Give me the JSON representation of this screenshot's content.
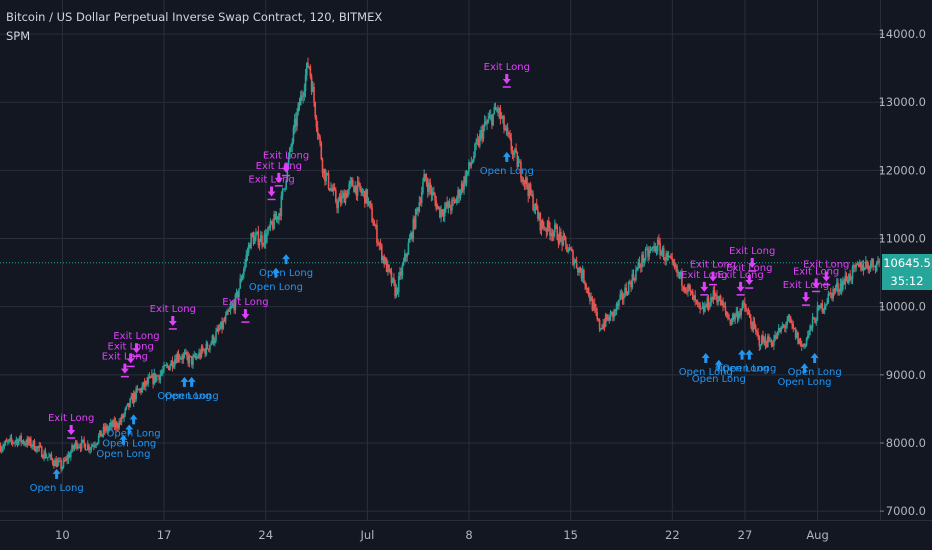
{
  "header": {
    "title": "Bitcoin / US Dollar Perpetual Inverse Swap Contract, 120, BITMEX",
    "study": "SPM"
  },
  "price_tag": {
    "value": "10645.5",
    "color": "#26a69a"
  },
  "countdown_tag": {
    "value": "35:12",
    "color": "#26a69a"
  },
  "colors": {
    "background": "#131722",
    "grid": "#2a2e39",
    "up": "#26a69a",
    "down": "#ef5350",
    "signal_open": "#2196f3",
    "signal_exit": "#e040fb",
    "text": "#b2b5be"
  },
  "chart_data": {
    "type": "candlestick",
    "title": "Bitcoin / US Dollar Perpetual Inverse Swap Contract, 120, BITMEX",
    "y_ticks": [
      7000,
      8000,
      9000,
      10000,
      11000,
      12000,
      13000,
      14000
    ],
    "y_tick_labels": [
      "7000.0",
      "8000.0",
      "9000.0",
      "10000.0",
      "11000.0",
      "12000.0",
      "13000.0",
      "14000.0"
    ],
    "ylim": [
      6870,
      14500
    ],
    "x_ticks": [
      "10",
      "17",
      "24",
      "Jul",
      "8",
      "15",
      "22",
      "27",
      "Aug"
    ],
    "x_tick_days": [
      10,
      17,
      24,
      31,
      38,
      45,
      52,
      57,
      62
    ],
    "xlim": [
      5.7,
      66.3
    ],
    "price_path": [
      [
        5.7,
        7950
      ],
      [
        7,
        8050
      ],
      [
        8,
        7980
      ],
      [
        9,
        7800
      ],
      [
        10,
        7650
      ],
      [
        11,
        8000
      ],
      [
        12,
        7950
      ],
      [
        13,
        8200
      ],
      [
        14,
        8300
      ],
      [
        15,
        8700
      ],
      [
        16,
        8900
      ],
      [
        17,
        9050
      ],
      [
        18,
        9300
      ],
      [
        19,
        9200
      ],
      [
        20,
        9400
      ],
      [
        21,
        9700
      ],
      [
        22,
        10100
      ],
      [
        23,
        11000
      ],
      [
        24,
        11000
      ],
      [
        25,
        11400
      ],
      [
        26,
        12600
      ],
      [
        27,
        13600
      ],
      [
        28,
        12000
      ],
      [
        29,
        11500
      ],
      [
        30,
        11800
      ],
      [
        31,
        11600
      ],
      [
        32,
        10800
      ],
      [
        33,
        10200
      ],
      [
        34,
        11000
      ],
      [
        35,
        11900
      ],
      [
        36,
        11400
      ],
      [
        37,
        11500
      ],
      [
        38,
        12000
      ],
      [
        39,
        12600
      ],
      [
        40,
        12900
      ],
      [
        41,
        12300
      ],
      [
        42,
        11800
      ],
      [
        43,
        11200
      ],
      [
        44,
        11100
      ],
      [
        45,
        10800
      ],
      [
        46,
        10400
      ],
      [
        47,
        9700
      ],
      [
        48,
        9900
      ],
      [
        49,
        10300
      ],
      [
        50,
        10700
      ],
      [
        51,
        10900
      ],
      [
        52,
        10600
      ],
      [
        53,
        10300
      ],
      [
        54,
        9900
      ],
      [
        55,
        10200
      ],
      [
        56,
        9800
      ],
      [
        57,
        10000
      ],
      [
        58,
        9500
      ],
      [
        59,
        9500
      ],
      [
        60,
        9800
      ],
      [
        61,
        9400
      ],
      [
        62,
        9900
      ],
      [
        63,
        10200
      ],
      [
        64,
        10400
      ],
      [
        65,
        10600
      ],
      [
        66.3,
        10645.5
      ]
    ],
    "signals": [
      {
        "type": "exit",
        "label": "Exit Long",
        "day": 10.6,
        "price": 8000
      },
      {
        "type": "open",
        "label": "Open Long",
        "day": 9.6,
        "price": 7650
      },
      {
        "type": "exit",
        "label": "Exit Long",
        "day": 14.3,
        "price": 8900
      },
      {
        "type": "exit",
        "label": "Exit Long",
        "day": 14.7,
        "price": 9050
      },
      {
        "type": "exit",
        "label": "Exit Long",
        "day": 15.1,
        "price": 9200
      },
      {
        "type": "open",
        "label": "Open Long",
        "day": 14.2,
        "price": 8150
      },
      {
        "type": "open",
        "label": "Open Long",
        "day": 14.6,
        "price": 8300
      },
      {
        "type": "open",
        "label": "Open Long",
        "day": 14.9,
        "price": 8450
      },
      {
        "type": "exit",
        "label": "Exit Long",
        "day": 17.6,
        "price": 9600
      },
      {
        "type": "open",
        "label": "Open Long",
        "day": 18.4,
        "price": 9000
      },
      {
        "type": "open",
        "label": "Open Long",
        "day": 18.9,
        "price": 9000
      },
      {
        "type": "exit",
        "label": "Exit Long",
        "day": 22.6,
        "price": 9700
      },
      {
        "type": "exit",
        "label": "Exit Long",
        "day": 24.4,
        "price": 11500
      },
      {
        "type": "exit",
        "label": "Exit Long",
        "day": 24.9,
        "price": 11700
      },
      {
        "type": "exit",
        "label": "Exit Long",
        "day": 25.4,
        "price": 11850
      },
      {
        "type": "open",
        "label": "Open Long",
        "day": 24.7,
        "price": 10600
      },
      {
        "type": "open",
        "label": "Open Long",
        "day": 25.4,
        "price": 10800
      },
      {
        "type": "exit",
        "label": "Exit Long",
        "day": 40.6,
        "price": 13150
      },
      {
        "type": "open",
        "label": "Open Long",
        "day": 40.6,
        "price": 12300
      },
      {
        "type": "exit",
        "label": "Exit Long",
        "day": 54.2,
        "price": 10100
      },
      {
        "type": "exit",
        "label": "Exit Long",
        "day": 54.8,
        "price": 10250
      },
      {
        "type": "exit",
        "label": "Exit Long",
        "day": 56.7,
        "price": 10100
      },
      {
        "type": "exit",
        "label": "Exit Long",
        "day": 57.3,
        "price": 10200
      },
      {
        "type": "exit",
        "label": "Exit Long",
        "day": 57.5,
        "price": 10450
      },
      {
        "type": "open",
        "label": "Open Long",
        "day": 54.3,
        "price": 9350
      },
      {
        "type": "open",
        "label": "Open Long",
        "day": 55.2,
        "price": 9250
      },
      {
        "type": "open",
        "label": "Open Long",
        "day": 56.8,
        "price": 9400
      },
      {
        "type": "open",
        "label": "Open Long",
        "day": 57.3,
        "price": 9400
      },
      {
        "type": "exit",
        "label": "Exit Long",
        "day": 61.2,
        "price": 9950
      },
      {
        "type": "exit",
        "label": "Exit Long",
        "day": 61.9,
        "price": 10150
      },
      {
        "type": "exit",
        "label": "Exit Long",
        "day": 62.6,
        "price": 10250
      },
      {
        "type": "open",
        "label": "Open Long",
        "day": 61.1,
        "price": 9200
      },
      {
        "type": "open",
        "label": "Open Long",
        "day": 61.8,
        "price": 9350
      }
    ]
  }
}
